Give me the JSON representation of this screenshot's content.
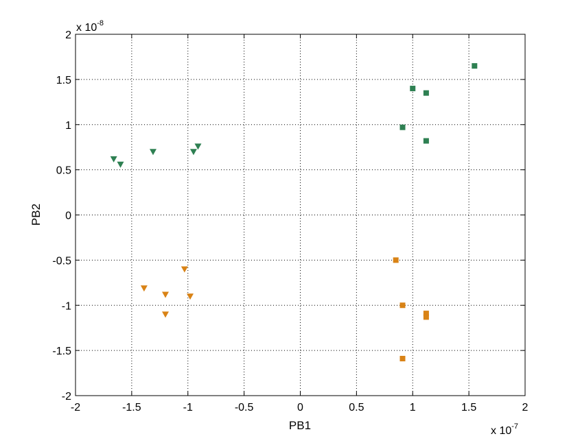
{
  "chart_data": {
    "type": "scatter",
    "title": "",
    "xlabel": "PB1",
    "ylabel": "PB2",
    "x_scale_note": "x 10",
    "x_scale_exp": "-7",
    "y_scale_note": "x 10",
    "y_scale_exp": "-8",
    "xlim": [
      -2,
      2
    ],
    "ylim": [
      -2,
      2
    ],
    "xticks": [
      -2,
      -1.5,
      -1,
      -0.5,
      0,
      0.5,
      1,
      1.5,
      2
    ],
    "xtick_labels": [
      "-2",
      "-1.5",
      "-1",
      "-0.5",
      "0",
      "0.5",
      "1",
      "1.5",
      "2"
    ],
    "yticks": [
      -2,
      -1.5,
      -1,
      -0.5,
      0,
      0.5,
      1,
      1.5,
      2
    ],
    "ytick_labels": [
      "-2",
      "-1.5",
      "-1",
      "-0.5",
      "0",
      "0.5",
      "1",
      "1.5",
      "2"
    ],
    "grid": true,
    "series": [
      {
        "marker": "triangle-down",
        "color": "#2e8052",
        "points": [
          [
            -1.66,
            0.62
          ],
          [
            -1.6,
            0.56
          ],
          [
            -1.31,
            0.7
          ],
          [
            -0.95,
            0.7
          ],
          [
            -0.91,
            0.76
          ]
        ]
      },
      {
        "marker": "square",
        "color": "#2e8052",
        "points": [
          [
            0.91,
            0.97
          ],
          [
            1.0,
            1.4
          ],
          [
            1.12,
            1.35
          ],
          [
            1.12,
            0.82
          ],
          [
            1.55,
            1.65
          ]
        ]
      },
      {
        "marker": "triangle-down",
        "color": "#d98316",
        "points": [
          [
            -1.39,
            -0.81
          ],
          [
            -1.2,
            -0.88
          ],
          [
            -1.2,
            -1.1
          ],
          [
            -1.03,
            -0.6
          ],
          [
            -0.98,
            -0.9
          ]
        ]
      },
      {
        "marker": "square",
        "color": "#d98316",
        "points": [
          [
            0.85,
            -0.5
          ],
          [
            0.91,
            -1.0
          ],
          [
            1.12,
            -1.09
          ],
          [
            1.12,
            -1.13
          ],
          [
            0.91,
            -1.59
          ]
        ]
      }
    ]
  }
}
